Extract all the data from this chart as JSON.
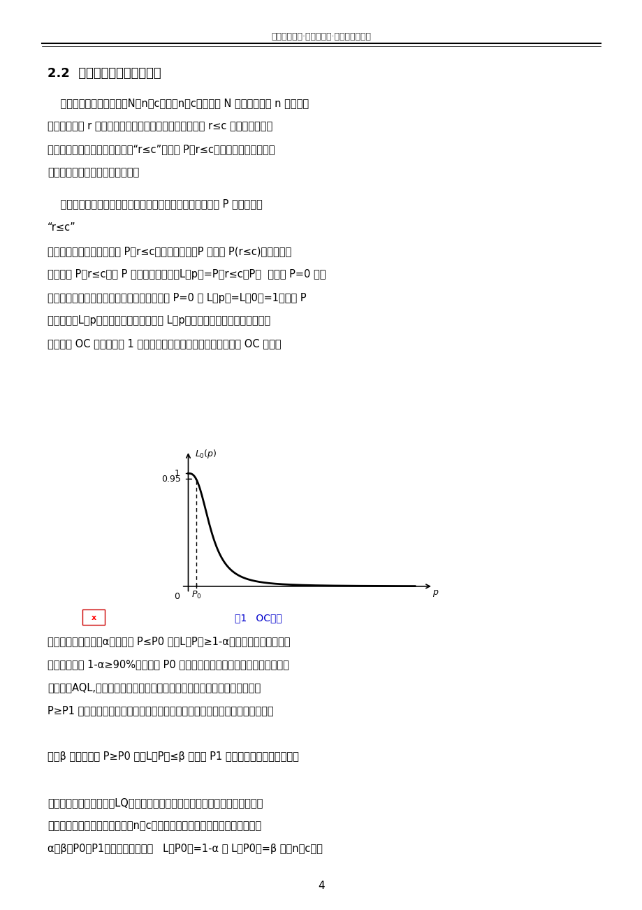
{
  "header_text": "沈阳工业大学·研究生学院·电器可靠性技术",
  "section_title": "2.2  接收概率与抜样特性曲线",
  "para1_lines": [
    "    设一次技术抜样方案为（N；n，c）或（n，c），即从 N 个产品中任取 n 个样品，",
    "检查后发现有 r 个不合格品，按一次抜检的判断准则，当 r≤c 时，判这批产品",
    "合格，接收这批产品。所以事件“r≤c”的概率 P（r≤c）称为接收概率，它与",
    "这批产品的实际不合格品率有关。"
  ],
  "para2_lines": [
    "    一般来说。若这批产品中的不合格品数量少。即不合格品率 P 小，则事件",
    "“r≤c”"
  ],
  "para3_lines": [
    "就容易发生，从而接收概率 P（r≤c）就大；反之，P 大，则 P(r≤c)就小，所以",
    "接收概率 P（r≤c）是 P 的减函数。记作：L（p）=P（r≤c，P）  特别当 P=0 时，",
    "无论哪个抜样方案，都会接收这批产品。姑当 P=0 时 L（p）=L（0）=1。在以 P",
    "为横坐标，L（p）为纵坐标的坐标平面上 L（p）所对应的曲线称为抜样特性曲",
    "线，简称 OC 函数，如图 1 所示，一般，不同的抜样方案有不同的 OC 曲线。"
  ],
  "figure_caption": "图1   OC曲线",
  "bottom_lines": [
    "若规定生产方风险为α，则要求 P≤P0 时，L（P）≥1-α，它是一个较大的百分",
    "数，一般应有 1-α≥90%，这样的 P0 称为合格质量水平，又称为可接收质量水",
    "平，记为AQL,它是合格产品批中不合格品率的上限。当产品批的不合格品率",
    "P≥P1 时，产品批的质量是差的，只应以小概率接收这批产品。若规定使用方风",
    "",
    "险为β 时；则要求 P≥P0 时，L（P）≤β 这样的 P1 称为极限质量水平，又称为",
    "",
    "批允许不合格品率，记为LQ，它是不合格产品批中不合格品率的下限。综上所",
    "述，要的到一个好的抜样方案（n，c），应首先由生产方和使用方商定四个数",
    "α，β，P0，P1，然后满足方程组   L（P0）=1-α 和 L（P0）=β 的（n，c）。"
  ],
  "page_number": "4",
  "bg_color": "#ffffff",
  "text_color": "#000000"
}
